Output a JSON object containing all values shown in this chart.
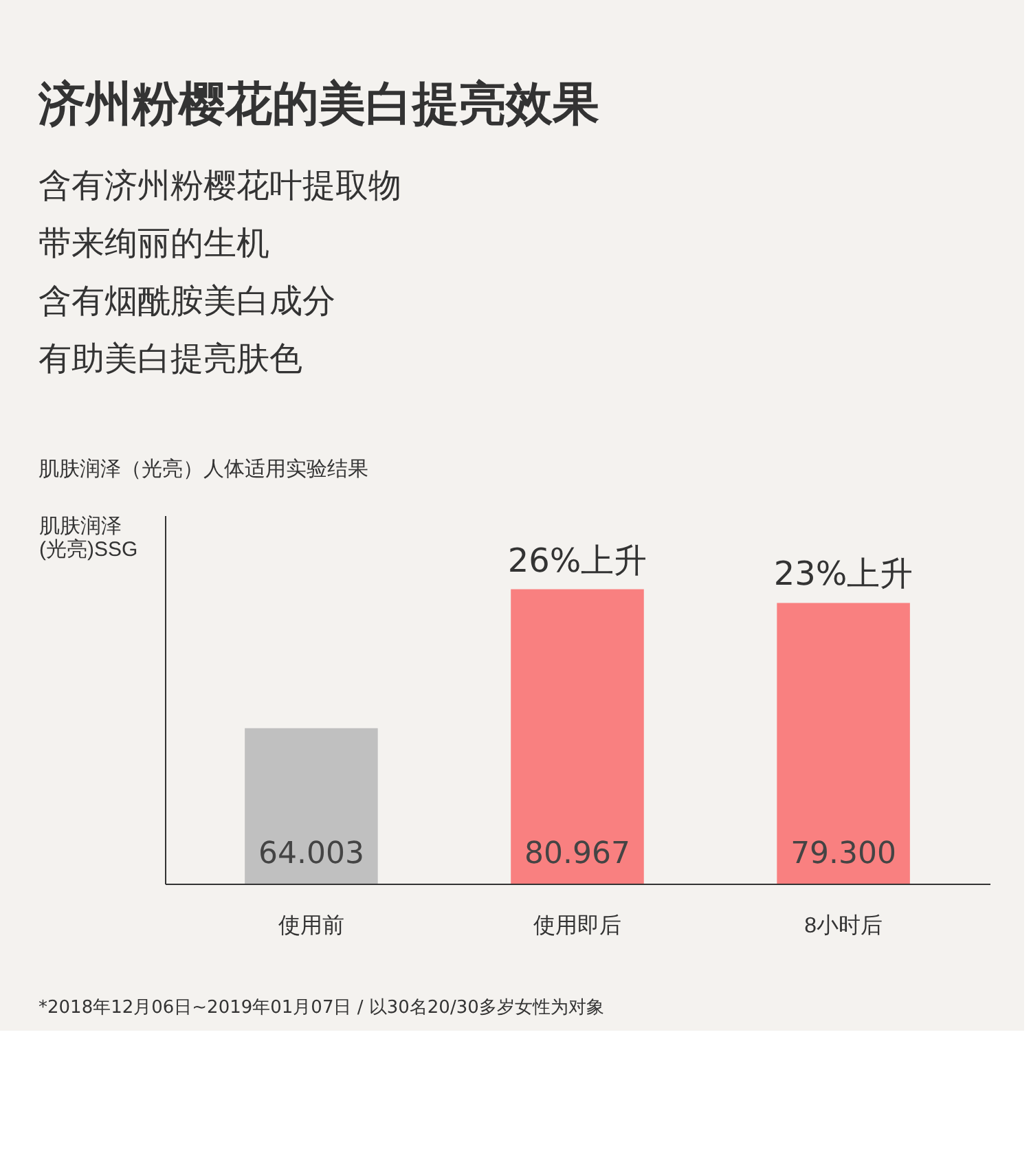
{
  "chart_data": {
    "type": "bar",
    "title": "济州粉樱花的美白提亮效果",
    "subtitle": [
      "含有济州粉樱花叶提取物",
      "带来绚丽的生机",
      "含有烟酰胺美白成分",
      "有助美白提亮肤色"
    ],
    "ylabel": "肌肤润泽\n(光亮)SSG",
    "categories": [
      "使用前",
      "使用即后",
      "8小时后"
    ],
    "values": [
      64.003,
      80.967,
      79.3
    ],
    "colors": [
      "#c0c0c0",
      "#f98080",
      "#f98080"
    ],
    "value_labels": [
      "64.003",
      "80.967",
      "79.300"
    ],
    "ylim": [
      45,
      90
    ],
    "tick_labels": "x",
    "grid": false,
    "legend": false,
    "annotations": [
      "肌肤润泽（光亮）人体适用实验结果",
      {
        "text": "26%上升",
        "x": "使用即后",
        "y": 80.967
      },
      {
        "text": "23%上升",
        "x": "8小时后",
        "y": 79.3
      },
      "*2018年12月06日~2019年01月07日 / 以30名20/30多岁女性为对象"
    ]
  }
}
